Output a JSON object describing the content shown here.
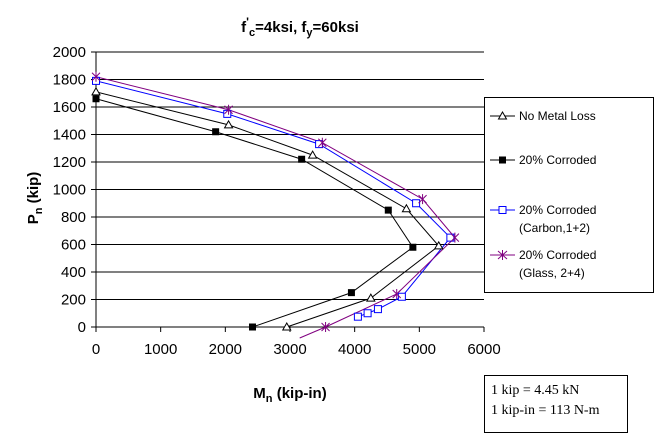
{
  "chart_data": {
    "type": "line",
    "title_parts": {
      "f": "f",
      "c_sub": "c",
      "mid": "=4ksi, f",
      "y_sub": "y",
      "end": "=60ksi"
    },
    "xlabel_parts": {
      "main": "M",
      "sub": "n",
      "rest": " (kip-in)"
    },
    "ylabel_parts": {
      "main": "P",
      "sub": "n",
      "rest": " (kip)"
    },
    "xlim": [
      0,
      6000
    ],
    "ylim": [
      0,
      2000
    ],
    "xticks": [
      0,
      1000,
      2000,
      3000,
      4000,
      5000,
      6000
    ],
    "yticks": [
      0,
      200,
      400,
      600,
      800,
      1000,
      1200,
      1400,
      1600,
      1800,
      2000
    ],
    "grid": "horizontal",
    "legend_position": "right",
    "series": [
      {
        "name": "No Metal Loss",
        "color": "#000000",
        "marker": "triangle-open",
        "points": [
          [
            0,
            1710
          ],
          [
            2050,
            1470
          ],
          [
            3350,
            1250
          ],
          [
            4800,
            860
          ],
          [
            5300,
            590
          ],
          [
            4250,
            210
          ],
          [
            2950,
            0
          ]
        ]
      },
      {
        "name": "20% Corroded",
        "color": "#000000",
        "marker": "square-filled",
        "points": [
          [
            0,
            1660
          ],
          [
            1850,
            1420
          ],
          [
            3180,
            1220
          ],
          [
            4520,
            850
          ],
          [
            4900,
            580
          ],
          [
            3950,
            250
          ],
          [
            2420,
            0
          ]
        ]
      },
      {
        "name_lines": [
          "20% Corroded",
          "(Carbon,1+2)"
        ],
        "color": "#0000ff",
        "marker": "square-open",
        "points": [
          [
            0,
            1790
          ],
          [
            2030,
            1550
          ],
          [
            3450,
            1330
          ],
          [
            4950,
            900
          ],
          [
            5480,
            650
          ],
          [
            4730,
            220
          ],
          [
            4360,
            130
          ],
          [
            4200,
            100
          ],
          [
            4050,
            75
          ]
        ]
      },
      {
        "name_lines": [
          "20% Corroded",
          "(Glass, 2+4)"
        ],
        "color": "#800080",
        "marker": "asterisk",
        "points": [
          [
            0,
            1820
          ],
          [
            2050,
            1580
          ],
          [
            3500,
            1340
          ],
          [
            5050,
            930
          ],
          [
            5550,
            650
          ],
          [
            4650,
            240
          ],
          [
            3550,
            0
          ],
          [
            3150,
            -80
          ]
        ]
      }
    ]
  },
  "note": {
    "line1": "1 kip = 4.45 kN",
    "line2": "1 kip-in = 113 N-m"
  }
}
